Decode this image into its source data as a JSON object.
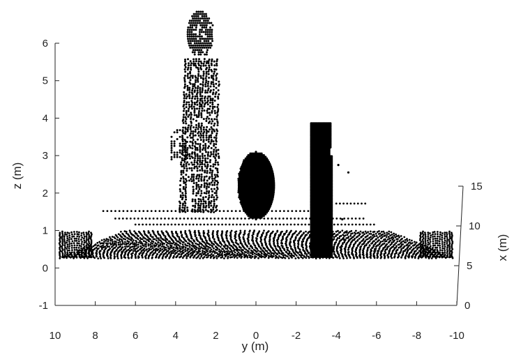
{
  "chart_data": {
    "type": "scatter",
    "title": "",
    "xlabel": "y (m)",
    "ylabel": "z (m)",
    "depth_label": "x (m)",
    "xlim": [
      10,
      -10
    ],
    "ylim": [
      -1,
      6
    ],
    "depth_lim": [
      0,
      15
    ],
    "x_ticks": [
      "10",
      "8",
      "6",
      "4",
      "2",
      "0",
      "-2",
      "-4",
      "-6",
      "-8",
      "-10"
    ],
    "y_ticks": [
      "-1",
      "0",
      "1",
      "2",
      "3",
      "4",
      "5",
      "6"
    ],
    "depth_ticks": [
      "0",
      "5",
      "10",
      "15"
    ],
    "grid": false,
    "point_color": "#000000",
    "objects": [
      {
        "name": "ground plane",
        "y_range": [
          9.8,
          -9.8
        ],
        "z_range": [
          0.25,
          1.0
        ]
      },
      {
        "name": "pedestrian",
        "y_range": [
          4.2,
          1.9
        ],
        "z_range": [
          1.5,
          6.9
        ]
      },
      {
        "name": "ellipsoid",
        "y_center": 0.0,
        "z_center": 2.2,
        "y_half_width": 0.9,
        "z_half_height": 0.9
      },
      {
        "name": "wall",
        "y_range": [
          -2.8,
          -3.8
        ],
        "z_range": [
          0.3,
          3.9
        ]
      }
    ]
  }
}
